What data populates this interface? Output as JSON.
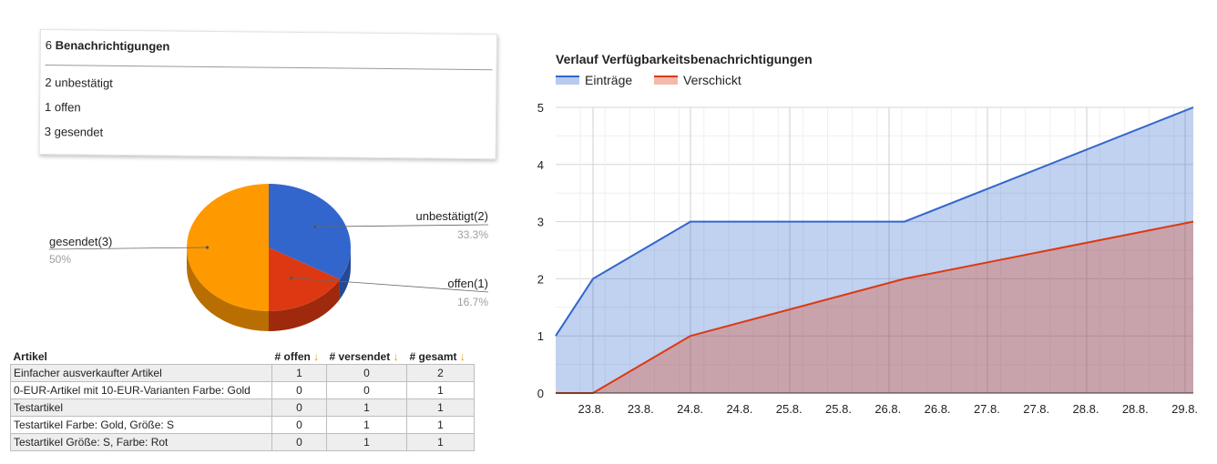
{
  "summary": {
    "total_count": "6",
    "total_label": "Benachrichtigungen",
    "lines": [
      "2 unbestätigt",
      "1 offen",
      "3 gesendet"
    ]
  },
  "pie": {
    "slices": [
      {
        "label": "unbestätigt(2)",
        "value": 2,
        "pct": "33.3%",
        "color": "#3366cc"
      },
      {
        "label": "offen(1)",
        "value": 1,
        "pct": "16.7%",
        "color": "#dc3912"
      },
      {
        "label": "gesendet(3)",
        "value": 3,
        "pct": "50%",
        "color": "#ff9900"
      }
    ]
  },
  "table": {
    "headers": [
      "Artikel",
      "# offen",
      "# versendet",
      "# gesamt"
    ],
    "sort_glyph": "↓",
    "rows": [
      [
        "Einfacher ausverkaufter Artikel",
        "1",
        "0",
        "2"
      ],
      [
        "0-EUR-Artikel mit 10-EUR-Varianten Farbe: Gold",
        "0",
        "0",
        "1"
      ],
      [
        "Testartikel",
        "0",
        "1",
        "1"
      ],
      [
        "Testartikel Farbe: Gold, Größe: S",
        "0",
        "1",
        "1"
      ],
      [
        "Testartikel Größe: S, Farbe: Rot",
        "0",
        "1",
        "1"
      ]
    ]
  },
  "chart_data": {
    "type": "area",
    "title": "Verlauf Verfügbarkeitsbenachrichtigungen",
    "xlabel": "",
    "ylabel": "",
    "ylim": [
      0,
      5
    ],
    "yticks": [
      "0",
      "1",
      "2",
      "3",
      "4",
      "5"
    ],
    "x_tick_labels": [
      "23.8.",
      "23.8.",
      "24.8.",
      "24.8.",
      "25.8.",
      "25.8.",
      "26.8.",
      "26.8.",
      "27.8.",
      "27.8.",
      "28.8.",
      "28.8.",
      "29.8."
    ],
    "grid": true,
    "legend_position": "top-left",
    "series": [
      {
        "name": "Einträge",
        "color": "#3366cc",
        "points": [
          [
            "23.8.",
            1
          ],
          [
            "23.8.",
            2
          ],
          [
            "24.8.",
            3
          ],
          [
            "26.8.",
            3
          ],
          [
            "29.8.",
            5
          ]
        ]
      },
      {
        "name": "Verschickt",
        "color": "#dc3912",
        "points": [
          [
            "23.8.",
            0
          ],
          [
            "23.8.",
            0
          ],
          [
            "24.8.",
            1
          ],
          [
            "26.8.",
            2
          ],
          [
            "29.8.",
            3
          ]
        ]
      }
    ]
  }
}
